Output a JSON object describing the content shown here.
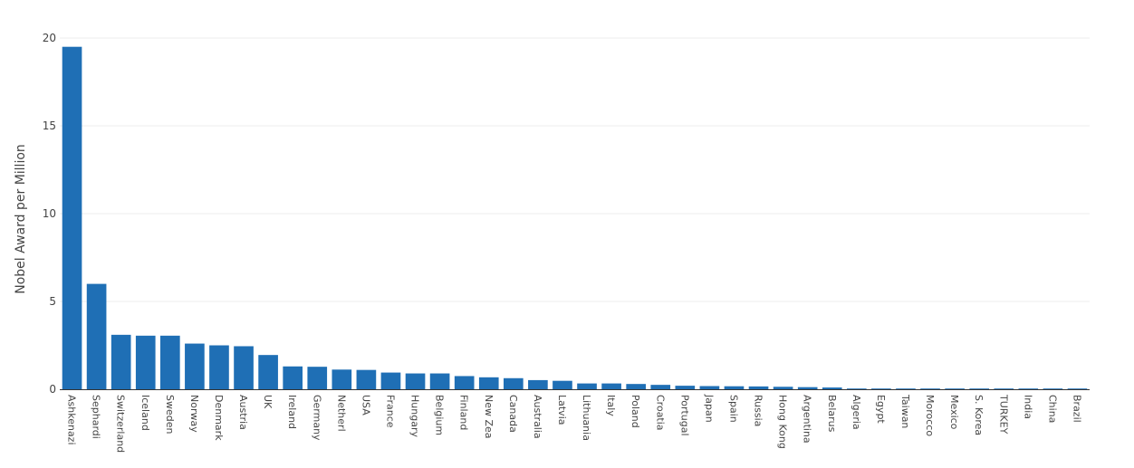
{
  "chart_data": {
    "type": "bar",
    "ylabel": "Nobel Award per Million",
    "xlabel": "",
    "ylim": [
      0,
      20
    ],
    "yticks": [
      0,
      5,
      10,
      15,
      20
    ],
    "grid": true,
    "bar_color": "#1f6fb5",
    "categories": [
      "Ashkenazi",
      "Sephardi",
      "Switzerland",
      "Iceland",
      "Sweden",
      "Norway",
      "Denmark",
      "Austria",
      "UK",
      "Ireland",
      "Germany",
      "Netherl",
      "USA",
      "France",
      "Hungary",
      "Belgium",
      "Finland",
      "New Zea",
      "Canada",
      "Australia",
      "Latvia",
      "Lithuania",
      "Italy",
      "Poland",
      "Croatia",
      "Portugal",
      "Japan",
      "Spain",
      "Russia",
      "Hong Kong",
      "Argentina",
      "Belarus",
      "Algeria",
      "Egypt",
      "Taiwan",
      "Morocco",
      "Mexico",
      "S. Korea",
      "TURKEY",
      "India",
      "China",
      "Brazil"
    ],
    "values": [
      19.5,
      6.0,
      3.1,
      3.05,
      3.05,
      2.6,
      2.5,
      2.45,
      1.95,
      1.3,
      1.28,
      1.12,
      1.1,
      0.95,
      0.9,
      0.9,
      0.75,
      0.68,
      0.63,
      0.52,
      0.48,
      0.33,
      0.33,
      0.3,
      0.25,
      0.2,
      0.18,
      0.17,
      0.16,
      0.14,
      0.12,
      0.1,
      0.04,
      0.03,
      0.03,
      0.03,
      0.03,
      0.03,
      0.03,
      0.02,
      0.02,
      0.02
    ]
  }
}
